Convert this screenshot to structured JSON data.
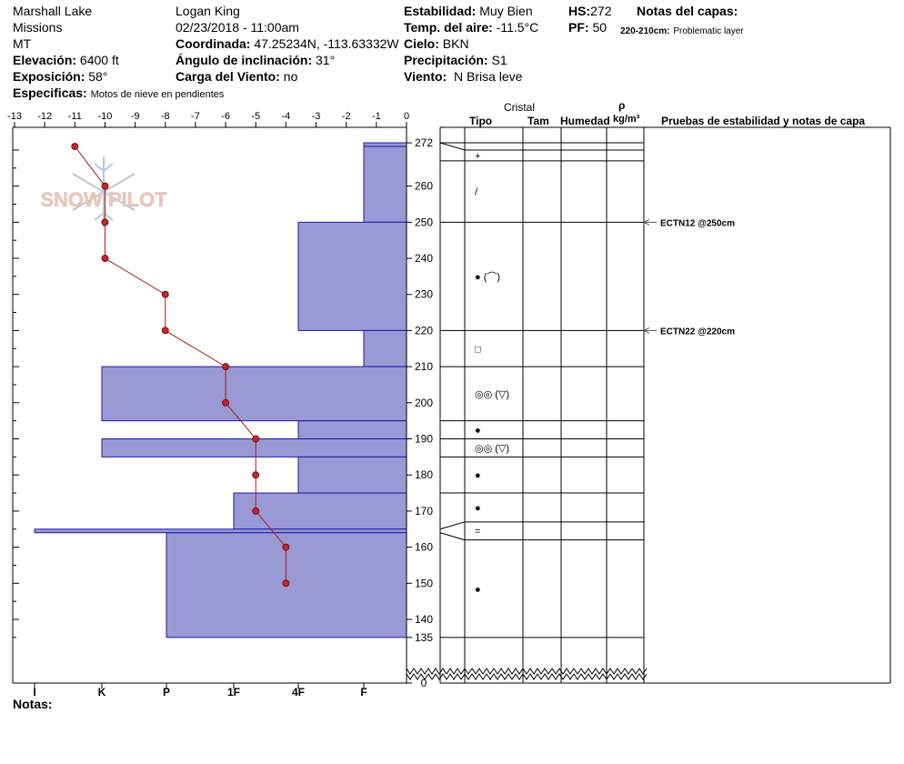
{
  "header": {
    "location": "Marshall Lake",
    "range": "Missions",
    "state": "MT",
    "elevation_label": "Elevación:",
    "elevation_value": "6400 ft",
    "aspect_label": "Exposición:",
    "aspect_value": "58°",
    "observer": "Logan King",
    "datetime": "02/23/2018 - 11:00am",
    "coord_label": "Coordinada:",
    "coord_value": "47.25234N, -113.63332W",
    "slope_label": "Ángulo de inclinación:",
    "slope_value": "31°",
    "wind_load_label": "Carga del Viento:",
    "wind_load_value": "no",
    "stability_label": "Estabilidad:",
    "stability_value": "Muy Bien",
    "air_temp_label": "Temp. del aire:",
    "air_temp_value": "-11.5°C",
    "sky_label": "Cielo:",
    "sky_value": "BKN",
    "precip_label": "Precipitación:",
    "precip_value": "S1",
    "wind_label": "Viento:",
    "wind_value": "N Brisa leve",
    "hs_label": "HS:",
    "hs_value": "272",
    "pf_label": "PF:",
    "pf_value": "50",
    "layer_notes_label": "Notas del capas:",
    "layer_note_range": "220-210cm:",
    "layer_note_text": "Problematic layer",
    "specifics_label": "Especificas:",
    "specifics_value": "Motos de nieve en pendientes"
  },
  "logo_text": "SNOW PILOT",
  "temp_axis_labels": [
    "-13",
    "-12",
    "-11",
    "-10",
    "-9",
    "-8",
    "-7",
    "-6",
    "-5",
    "-4",
    "-3",
    "-2",
    "-1",
    "0"
  ],
  "hardness_labels": [
    "I",
    "K",
    "P",
    "1F",
    "4F",
    "F"
  ],
  "depth_labels": [
    "272",
    "260",
    "250",
    "240",
    "230",
    "220",
    "210",
    "200",
    "190",
    "180",
    "170",
    "160",
    "150",
    "140",
    "135",
    "0"
  ],
  "columns": {
    "crystal": "Cristal",
    "type": "Tipo",
    "size": "Tam",
    "moisture": "Humedad",
    "rho": "ρ",
    "density_unit": "kg/m³",
    "tests": "Pruebas de estabilidad y notas de capa"
  },
  "stability_tests": [
    {
      "label": "ECTN12 @250cm",
      "depth": 250
    },
    {
      "label": "ECTN22 @220cm",
      "depth": 220
    }
  ],
  "notes_label": "Notas:",
  "chart_data": {
    "type": "snow-profile",
    "temperature_profile": {
      "unit": "°C",
      "xlim": [
        -13,
        0
      ],
      "points": [
        {
          "depth": 271,
          "temp": -11
        },
        {
          "depth": 260,
          "temp": -10
        },
        {
          "depth": 250,
          "temp": -10
        },
        {
          "depth": 240,
          "temp": -10
        },
        {
          "depth": 230,
          "temp": -8
        },
        {
          "depth": 220,
          "temp": -8
        },
        {
          "depth": 210,
          "temp": -6
        },
        {
          "depth": 200,
          "temp": -6
        },
        {
          "depth": 190,
          "temp": -5
        },
        {
          "depth": 180,
          "temp": -5
        },
        {
          "depth": 170,
          "temp": -5
        },
        {
          "depth": 160,
          "temp": -4
        },
        {
          "depth": 150,
          "temp": -4
        }
      ]
    },
    "hardness_scale": [
      "F",
      "4F",
      "1F",
      "P",
      "K",
      "I"
    ],
    "layers": [
      {
        "top": 272,
        "bottom": 271,
        "hardness": "F-"
      },
      {
        "top": 271,
        "bottom": 250,
        "hardness": "F"
      },
      {
        "top": 250,
        "bottom": 220,
        "hardness": "4F"
      },
      {
        "top": 220,
        "bottom": 210,
        "hardness": "F"
      },
      {
        "top": 210,
        "bottom": 195,
        "hardness": "P+"
      },
      {
        "top": 195,
        "bottom": 190,
        "hardness": "4F"
      },
      {
        "top": 190,
        "bottom": 185,
        "hardness": "P+"
      },
      {
        "top": 185,
        "bottom": 175,
        "hardness": "4F"
      },
      {
        "top": 175,
        "bottom": 165,
        "hardness": "1F"
      },
      {
        "top": 165,
        "bottom": 164,
        "hardness": "I-"
      },
      {
        "top": 164,
        "bottom": 135,
        "hardness": "P"
      }
    ],
    "grain_rows": [
      {
        "top": 272,
        "bottom": 270,
        "symbol": ""
      },
      {
        "top": 270,
        "bottom": 267,
        "symbol": "+"
      },
      {
        "top": 267,
        "bottom": 250,
        "symbol": "/"
      },
      {
        "top": 250,
        "bottom": 220,
        "symbol": "● (⌒)"
      },
      {
        "top": 220,
        "bottom": 210,
        "symbol": "□"
      },
      {
        "top": 210,
        "bottom": 195,
        "symbol": "◎◎ (▽)"
      },
      {
        "top": 195,
        "bottom": 190,
        "symbol": "●"
      },
      {
        "top": 190,
        "bottom": 185,
        "symbol": "◎◎ (▽)"
      },
      {
        "top": 185,
        "bottom": 175,
        "symbol": "●"
      },
      {
        "top": 175,
        "bottom": 167,
        "symbol": "●"
      },
      {
        "top": 167,
        "bottom": 162,
        "symbol": "="
      },
      {
        "top": 162,
        "bottom": 135,
        "symbol": "●"
      }
    ]
  }
}
